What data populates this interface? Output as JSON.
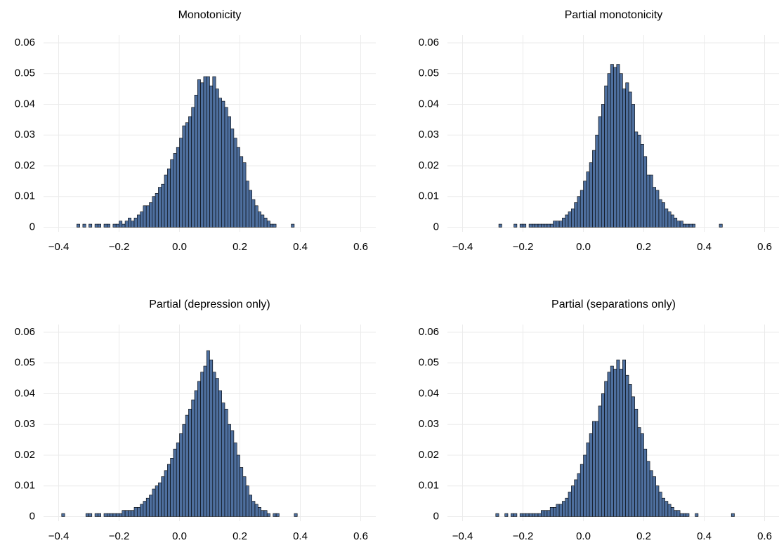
{
  "chart_data": [
    {
      "type": "histogram",
      "title": "Monotonicity",
      "color": "#4e6f9e",
      "grid": true,
      "bins": [
        -0.4,
        -0.39,
        -0.38,
        -0.37,
        -0.36,
        -0.35,
        -0.34,
        -0.33,
        -0.32,
        -0.31,
        -0.3,
        -0.29,
        -0.28,
        -0.27,
        -0.26,
        -0.25,
        -0.24,
        -0.23,
        -0.22,
        -0.21,
        -0.2,
        -0.19,
        -0.18,
        -0.17,
        -0.16,
        -0.15,
        -0.14,
        -0.13,
        -0.12,
        -0.11,
        -0.1,
        -0.09,
        -0.08,
        -0.07,
        -0.06,
        -0.05,
        -0.04,
        -0.03,
        -0.02,
        -0.01,
        0,
        0.01,
        0.02,
        0.03,
        0.04,
        0.05,
        0.06,
        0.07,
        0.08,
        0.09,
        0.1,
        0.11,
        0.12,
        0.13,
        0.14,
        0.15,
        0.16,
        0.17,
        0.18,
        0.19,
        0.2,
        0.21,
        0.22,
        0.23,
        0.24,
        0.25,
        0.26,
        0.27,
        0.28,
        0.29,
        0.3,
        0.31,
        0.32,
        0.33,
        0.34,
        0.35,
        0.36,
        0.37,
        0.38,
        0.39,
        0.4,
        0.41,
        0.42,
        0.43,
        0.44,
        0.45,
        0.46,
        0.47,
        0.48,
        0.49,
        0.5,
        0.51,
        0.52,
        0.53,
        0.54,
        0.55,
        0.56,
        0.57,
        0.58,
        0.59,
        0.6
      ],
      "values": [
        0,
        0,
        0,
        0,
        0,
        0,
        0.001,
        0,
        0.001,
        0,
        0.001,
        0,
        0.001,
        0.001,
        0,
        0.001,
        0.001,
        0,
        0.001,
        0.001,
        0.002,
        0.001,
        0.002,
        0.003,
        0.002,
        0.003,
        0.004,
        0.005,
        0.007,
        0.007,
        0.008,
        0.01,
        0.011,
        0.013,
        0.014,
        0.017,
        0.019,
        0.022,
        0.024,
        0.026,
        0.029,
        0.033,
        0.034,
        0.036,
        0.039,
        0.043,
        0.048,
        0.047,
        0.049,
        0.049,
        0.046,
        0.049,
        0.045,
        0.042,
        0.041,
        0.039,
        0.036,
        0.032,
        0.029,
        0.026,
        0.023,
        0.021,
        0.015,
        0.012,
        0.009,
        0.007,
        0.005,
        0.004,
        0.003,
        0.002,
        0.001,
        0.001,
        0,
        0,
        0,
        0,
        0,
        0.001,
        0,
        0,
        0,
        0,
        0,
        0,
        0,
        0,
        0,
        0,
        0,
        0,
        0,
        0,
        0,
        0,
        0,
        0,
        0,
        0,
        0,
        0
      ],
      "xlim": [
        -0.45,
        0.65
      ],
      "ylim": [
        -0.0015,
        0.0625
      ],
      "xticks": [
        {
          "value": -0.4,
          "label": "−0.4"
        },
        {
          "value": -0.2,
          "label": "−0.2"
        },
        {
          "value": 0,
          "label": "0.0"
        },
        0.2,
        0.4,
        0.6
      ],
      "yticks": [
        0,
        0.01,
        0.02,
        0.03,
        0.04,
        0.05,
        0.06
      ]
    },
    {
      "type": "histogram",
      "title": "Partial monotonicity",
      "color": "#4e6f9e",
      "grid": true,
      "bins": [
        -0.4,
        -0.39,
        -0.38,
        -0.37,
        -0.36,
        -0.35,
        -0.34,
        -0.33,
        -0.32,
        -0.31,
        -0.3,
        -0.29,
        -0.28,
        -0.27,
        -0.26,
        -0.25,
        -0.24,
        -0.23,
        -0.22,
        -0.21,
        -0.2,
        -0.19,
        -0.18,
        -0.17,
        -0.16,
        -0.15,
        -0.14,
        -0.13,
        -0.12,
        -0.11,
        -0.1,
        -0.09,
        -0.08,
        -0.07,
        -0.06,
        -0.05,
        -0.04,
        -0.03,
        -0.02,
        -0.01,
        0,
        0.01,
        0.02,
        0.03,
        0.04,
        0.05,
        0.06,
        0.07,
        0.08,
        0.09,
        0.1,
        0.11,
        0.12,
        0.13,
        0.14,
        0.15,
        0.16,
        0.17,
        0.18,
        0.19,
        0.2,
        0.21,
        0.22,
        0.23,
        0.24,
        0.25,
        0.26,
        0.27,
        0.28,
        0.29,
        0.3,
        0.31,
        0.32,
        0.33,
        0.34,
        0.35,
        0.36,
        0.37,
        0.38,
        0.39,
        0.4,
        0.41,
        0.42,
        0.43,
        0.44,
        0.45,
        0.46,
        0.47,
        0.48,
        0.49,
        0.5,
        0.51,
        0.52,
        0.53,
        0.54,
        0.55,
        0.56,
        0.57,
        0.58,
        0.59,
        0.6
      ],
      "values": [
        0,
        0,
        0,
        0,
        0,
        0,
        0,
        0,
        0,
        0,
        0,
        0,
        0.001,
        0,
        0,
        0,
        0,
        0.001,
        0,
        0.001,
        0.001,
        0,
        0.001,
        0.001,
        0.001,
        0.001,
        0.001,
        0.001,
        0.001,
        0.001,
        0.002,
        0.002,
        0.002,
        0.003,
        0.004,
        0.005,
        0.006,
        0.008,
        0.01,
        0.012,
        0.015,
        0.018,
        0.021,
        0.025,
        0.03,
        0.036,
        0.04,
        0.046,
        0.05,
        0.053,
        0.052,
        0.053,
        0.05,
        0.045,
        0.047,
        0.044,
        0.04,
        0.031,
        0.03,
        0.027,
        0.023,
        0.017,
        0.017,
        0.013,
        0.012,
        0.009,
        0.008,
        0.006,
        0.005,
        0.004,
        0.003,
        0.002,
        0.002,
        0.001,
        0.001,
        0.001,
        0.001,
        0,
        0,
        0,
        0,
        0,
        0,
        0,
        0,
        0.001,
        0,
        0,
        0,
        0,
        0,
        0,
        0,
        0,
        0,
        0,
        0,
        0,
        0,
        0
      ],
      "xlim": [
        -0.45,
        0.65
      ],
      "ylim": [
        -0.0015,
        0.0625
      ],
      "xticks": [
        {
          "value": -0.4,
          "label": "−0.4"
        },
        {
          "value": -0.2,
          "label": "−0.2"
        },
        {
          "value": 0,
          "label": "0.0"
        },
        0.2,
        0.4,
        0.6
      ],
      "yticks": [
        0,
        0.01,
        0.02,
        0.03,
        0.04,
        0.05,
        0.06
      ]
    },
    {
      "type": "histogram",
      "title": "Partial (depression only)",
      "color": "#4e6f9e",
      "grid": true,
      "bins": [
        -0.4,
        -0.39,
        -0.38,
        -0.37,
        -0.36,
        -0.35,
        -0.34,
        -0.33,
        -0.32,
        -0.31,
        -0.3,
        -0.29,
        -0.28,
        -0.27,
        -0.26,
        -0.25,
        -0.24,
        -0.23,
        -0.22,
        -0.21,
        -0.2,
        -0.19,
        -0.18,
        -0.17,
        -0.16,
        -0.15,
        -0.14,
        -0.13,
        -0.12,
        -0.11,
        -0.1,
        -0.09,
        -0.08,
        -0.07,
        -0.06,
        -0.05,
        -0.04,
        -0.03,
        -0.02,
        -0.01,
        0,
        0.01,
        0.02,
        0.03,
        0.04,
        0.05,
        0.06,
        0.07,
        0.08,
        0.09,
        0.1,
        0.11,
        0.12,
        0.13,
        0.14,
        0.15,
        0.16,
        0.17,
        0.18,
        0.19,
        0.2,
        0.21,
        0.22,
        0.23,
        0.24,
        0.25,
        0.26,
        0.27,
        0.28,
        0.29,
        0.3,
        0.31,
        0.32,
        0.33,
        0.34,
        0.35,
        0.36,
        0.37,
        0.38,
        0.39,
        0.4,
        0.41,
        0.42,
        0.43,
        0.44,
        0.45,
        0.46,
        0.47,
        0.48,
        0.49,
        0.5,
        0.51,
        0.52,
        0.53,
        0.54,
        0.55,
        0.56,
        0.57,
        0.58,
        0.59,
        0.6
      ],
      "values": [
        0,
        0.001,
        0,
        0,
        0,
        0,
        0,
        0,
        0,
        0.001,
        0.001,
        0,
        0.001,
        0.001,
        0,
        0.001,
        0.001,
        0.001,
        0.001,
        0.001,
        0.001,
        0.002,
        0.002,
        0.002,
        0.002,
        0.003,
        0.003,
        0.004,
        0.005,
        0.006,
        0.007,
        0.009,
        0.01,
        0.011,
        0.013,
        0.015,
        0.017,
        0.019,
        0.022,
        0.024,
        0.027,
        0.03,
        0.033,
        0.035,
        0.038,
        0.041,
        0.044,
        0.047,
        0.049,
        0.054,
        0.051,
        0.047,
        0.045,
        0.041,
        0.037,
        0.035,
        0.03,
        0.028,
        0.024,
        0.02,
        0.016,
        0.013,
        0.01,
        0.007,
        0.005,
        0.004,
        0.003,
        0.002,
        0.002,
        0.001,
        0,
        0.001,
        0.001,
        0,
        0,
        0,
        0,
        0,
        0.001,
        0,
        0,
        0,
        0,
        0,
        0,
        0,
        0,
        0,
        0,
        0,
        0,
        0,
        0,
        0,
        0,
        0,
        0,
        0,
        0,
        0
      ],
      "xlim": [
        -0.45,
        0.65
      ],
      "ylim": [
        -0.0015,
        0.0625
      ],
      "xticks": [
        {
          "value": -0.4,
          "label": "−0.4"
        },
        {
          "value": -0.2,
          "label": "−0.2"
        },
        {
          "value": 0,
          "label": "0.0"
        },
        0.2,
        0.4,
        0.6
      ],
      "yticks": [
        0,
        0.01,
        0.02,
        0.03,
        0.04,
        0.05,
        0.06
      ]
    },
    {
      "type": "histogram",
      "title": "Partial (separations only)",
      "color": "#4e6f9e",
      "grid": true,
      "bins": [
        -0.4,
        -0.39,
        -0.38,
        -0.37,
        -0.36,
        -0.35,
        -0.34,
        -0.33,
        -0.32,
        -0.31,
        -0.3,
        -0.29,
        -0.28,
        -0.27,
        -0.26,
        -0.25,
        -0.24,
        -0.23,
        -0.22,
        -0.21,
        -0.2,
        -0.19,
        -0.18,
        -0.17,
        -0.16,
        -0.15,
        -0.14,
        -0.13,
        -0.12,
        -0.11,
        -0.1,
        -0.09,
        -0.08,
        -0.07,
        -0.06,
        -0.05,
        -0.04,
        -0.03,
        -0.02,
        -0.01,
        0,
        0.01,
        0.02,
        0.03,
        0.04,
        0.05,
        0.06,
        0.07,
        0.08,
        0.09,
        0.1,
        0.11,
        0.12,
        0.13,
        0.14,
        0.15,
        0.16,
        0.17,
        0.18,
        0.19,
        0.2,
        0.21,
        0.22,
        0.23,
        0.24,
        0.25,
        0.26,
        0.27,
        0.28,
        0.29,
        0.3,
        0.31,
        0.32,
        0.33,
        0.34,
        0.35,
        0.36,
        0.37,
        0.38,
        0.39,
        0.4,
        0.41,
        0.42,
        0.43,
        0.44,
        0.45,
        0.46,
        0.47,
        0.48,
        0.49,
        0.5,
        0.51,
        0.52,
        0.53,
        0.54,
        0.55,
        0.56,
        0.57,
        0.58,
        0.59,
        0.6
      ],
      "values": [
        0,
        0,
        0,
        0,
        0,
        0,
        0,
        0,
        0,
        0,
        0,
        0.001,
        0,
        0,
        0.001,
        0,
        0.001,
        0.001,
        0,
        0.001,
        0.001,
        0.001,
        0.001,
        0.001,
        0.001,
        0.001,
        0.002,
        0.002,
        0.002,
        0.003,
        0.003,
        0.004,
        0.004,
        0.005,
        0.006,
        0.008,
        0.01,
        0.012,
        0.014,
        0.017,
        0.02,
        0.024,
        0.027,
        0.031,
        0.031,
        0.036,
        0.04,
        0.044,
        0.047,
        0.049,
        0.048,
        0.051,
        0.048,
        0.051,
        0.046,
        0.043,
        0.039,
        0.035,
        0.029,
        0.027,
        0.022,
        0.018,
        0.015,
        0.013,
        0.01,
        0.008,
        0.006,
        0.005,
        0.004,
        0.003,
        0.002,
        0.002,
        0.001,
        0.001,
        0.001,
        0,
        0,
        0.001,
        0,
        0,
        0,
        0,
        0,
        0,
        0,
        0,
        0,
        0,
        0,
        0.001,
        0,
        0,
        0,
        0,
        0,
        0,
        0,
        0,
        0,
        0
      ],
      "xlim": [
        -0.45,
        0.65
      ],
      "ylim": [
        -0.0015,
        0.0625
      ],
      "xticks": [
        {
          "value": -0.4,
          "label": "−0.4"
        },
        {
          "value": -0.2,
          "label": "−0.2"
        },
        {
          "value": 0,
          "label": "0.0"
        },
        0.2,
        0.4,
        0.6
      ],
      "yticks": [
        0,
        0.01,
        0.02,
        0.03,
        0.04,
        0.05,
        0.06
      ]
    }
  ]
}
